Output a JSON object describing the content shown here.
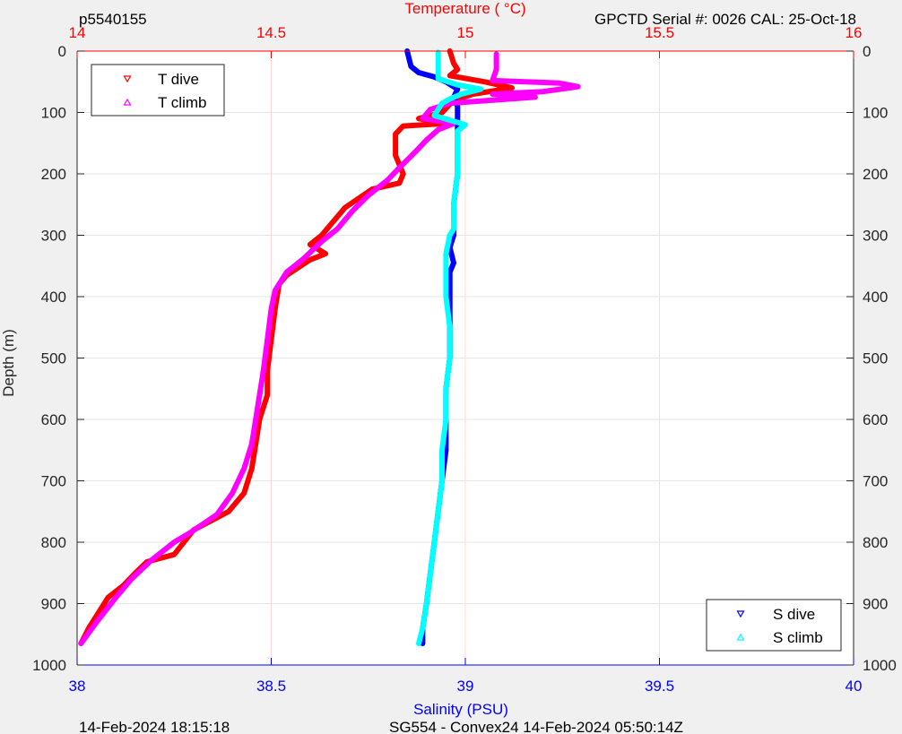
{
  "header": {
    "profile_id": "p5540155",
    "serial_info": "GPCTD Serial #: 0026 CAL: 25-Oct-18"
  },
  "footer": {
    "plot_date": "14-Feb-2024 18:15:18",
    "mission_info": "SG554 - Convex24 14-Feb-2024 05:50:14Z"
  },
  "colors": {
    "t_dive": "#ff0000",
    "t_climb": "#ff00ff",
    "s_dive": "#0000ff",
    "s_climb": "#00ffff",
    "temperature_axis": "#ff0000",
    "salinity_axis": "#0000ff",
    "depth_axis": "#262626"
  },
  "chart_data": {
    "type": "line",
    "y_axis": {
      "label": "Depth (m)",
      "range": [
        0,
        1000
      ],
      "reversed": true,
      "ticks": [
        0,
        100,
        200,
        300,
        400,
        500,
        600,
        700,
        800,
        900,
        1000
      ]
    },
    "temperature_axis": {
      "label": "Temperature (    °C)",
      "position": "top",
      "range": [
        14,
        16
      ],
      "ticks": [
        "14",
        "14.5",
        "15",
        "15.5",
        "16"
      ]
    },
    "salinity_axis": {
      "label": "Salinity (PSU)",
      "position": "bottom",
      "range": [
        38,
        40
      ],
      "ticks": [
        "38",
        "38.5",
        "39",
        "39.5",
        "40"
      ]
    },
    "grid": true,
    "legends": [
      {
        "placement": "top-left",
        "entries": [
          {
            "name": "T dive",
            "marker": "triangle-down",
            "series": "t_dive"
          },
          {
            "name": "T climb",
            "marker": "triangle-up",
            "series": "t_climb"
          }
        ]
      },
      {
        "placement": "bottom-right",
        "entries": [
          {
            "name": "S dive",
            "marker": "triangle-down",
            "series": "s_dive"
          },
          {
            "name": "S climb",
            "marker": "triangle-up",
            "series": "s_climb"
          }
        ]
      }
    ],
    "series": [
      {
        "name": "T dive",
        "key": "t_dive",
        "axis": "temperature",
        "points": [
          [
            14.96,
            0
          ],
          [
            14.97,
            20
          ],
          [
            14.98,
            30
          ],
          [
            14.96,
            40
          ],
          [
            15.05,
            50
          ],
          [
            15.12,
            60
          ],
          [
            15.02,
            70
          ],
          [
            14.97,
            80
          ],
          [
            14.94,
            100
          ],
          [
            14.88,
            110
          ],
          [
            14.95,
            118
          ],
          [
            14.84,
            122
          ],
          [
            14.82,
            135
          ],
          [
            14.82,
            170
          ],
          [
            14.84,
            200
          ],
          [
            14.83,
            215
          ],
          [
            14.76,
            225
          ],
          [
            14.69,
            255
          ],
          [
            14.63,
            300
          ],
          [
            14.6,
            315
          ],
          [
            14.64,
            330
          ],
          [
            14.6,
            340
          ],
          [
            14.54,
            365
          ],
          [
            14.52,
            380
          ],
          [
            14.51,
            420
          ],
          [
            14.5,
            470
          ],
          [
            14.49,
            520
          ],
          [
            14.49,
            560
          ],
          [
            14.47,
            600
          ],
          [
            14.46,
            640
          ],
          [
            14.45,
            680
          ],
          [
            14.43,
            720
          ],
          [
            14.39,
            750
          ],
          [
            14.3,
            780
          ],
          [
            14.25,
            820
          ],
          [
            14.18,
            832
          ],
          [
            14.15,
            850
          ],
          [
            14.12,
            870
          ],
          [
            14.08,
            890
          ],
          [
            14.07,
            900
          ],
          [
            14.03,
            940
          ],
          [
            14.01,
            965
          ]
        ]
      },
      {
        "name": "T climb",
        "key": "t_climb",
        "axis": "temperature",
        "points": [
          [
            15.08,
            5
          ],
          [
            15.08,
            20
          ],
          [
            15.08,
            30
          ],
          [
            15.07,
            48
          ],
          [
            15.24,
            52
          ],
          [
            15.29,
            58
          ],
          [
            15.2,
            66
          ],
          [
            15.07,
            70
          ],
          [
            15.18,
            75
          ],
          [
            14.96,
            85
          ],
          [
            14.91,
            95
          ],
          [
            14.89,
            110
          ],
          [
            14.97,
            118
          ],
          [
            14.93,
            128
          ],
          [
            14.9,
            145
          ],
          [
            14.87,
            165
          ],
          [
            14.83,
            190
          ],
          [
            14.8,
            210
          ],
          [
            14.75,
            235
          ],
          [
            14.71,
            260
          ],
          [
            14.67,
            290
          ],
          [
            14.63,
            310
          ],
          [
            14.58,
            340
          ],
          [
            14.54,
            360
          ],
          [
            14.51,
            390
          ],
          [
            14.5,
            420
          ],
          [
            14.49,
            470
          ],
          [
            14.48,
            520
          ],
          [
            14.47,
            560
          ],
          [
            14.46,
            600
          ],
          [
            14.45,
            640
          ],
          [
            14.43,
            680
          ],
          [
            14.4,
            720
          ],
          [
            14.36,
            755
          ],
          [
            14.29,
            785
          ],
          [
            14.25,
            800
          ],
          [
            14.19,
            830
          ],
          [
            14.14,
            860
          ],
          [
            14.1,
            890
          ],
          [
            14.05,
            930
          ],
          [
            14.01,
            965
          ]
        ]
      },
      {
        "name": "S dive",
        "key": "s_dive",
        "axis": "salinity",
        "points": [
          [
            38.85,
            0
          ],
          [
            38.86,
            25
          ],
          [
            38.88,
            35
          ],
          [
            38.92,
            42
          ],
          [
            38.95,
            50
          ],
          [
            38.98,
            62
          ],
          [
            38.97,
            75
          ],
          [
            38.98,
            90
          ],
          [
            38.98,
            110
          ],
          [
            38.98,
            150
          ],
          [
            38.98,
            200
          ],
          [
            38.97,
            250
          ],
          [
            38.97,
            300
          ],
          [
            38.96,
            320
          ],
          [
            38.97,
            345
          ],
          [
            38.96,
            360
          ],
          [
            38.96,
            400
          ],
          [
            38.96,
            450
          ],
          [
            38.96,
            500
          ],
          [
            38.95,
            550
          ],
          [
            38.95,
            600
          ],
          [
            38.95,
            650
          ],
          [
            38.94,
            700
          ],
          [
            38.93,
            750
          ],
          [
            38.92,
            800
          ],
          [
            38.91,
            850
          ],
          [
            38.9,
            900
          ],
          [
            38.89,
            940
          ],
          [
            38.89,
            965
          ]
        ]
      },
      {
        "name": "S climb",
        "key": "s_climb",
        "axis": "salinity",
        "points": [
          [
            38.93,
            2
          ],
          [
            38.93,
            30
          ],
          [
            38.93,
            45
          ],
          [
            38.98,
            55
          ],
          [
            39.04,
            62
          ],
          [
            38.99,
            70
          ],
          [
            38.96,
            78
          ],
          [
            38.94,
            85
          ],
          [
            38.93,
            95
          ],
          [
            38.92,
            105
          ],
          [
            39.0,
            120
          ],
          [
            38.98,
            130
          ],
          [
            38.98,
            150
          ],
          [
            38.98,
            200
          ],
          [
            38.97,
            250
          ],
          [
            38.97,
            290
          ],
          [
            38.96,
            300
          ],
          [
            38.95,
            330
          ],
          [
            38.95,
            400
          ],
          [
            38.96,
            450
          ],
          [
            38.96,
            500
          ],
          [
            38.95,
            550
          ],
          [
            38.95,
            600
          ],
          [
            38.94,
            650
          ],
          [
            38.94,
            700
          ],
          [
            38.93,
            750
          ],
          [
            38.92,
            800
          ],
          [
            38.91,
            850
          ],
          [
            38.9,
            900
          ],
          [
            38.89,
            940
          ],
          [
            38.88,
            965
          ]
        ]
      }
    ]
  }
}
